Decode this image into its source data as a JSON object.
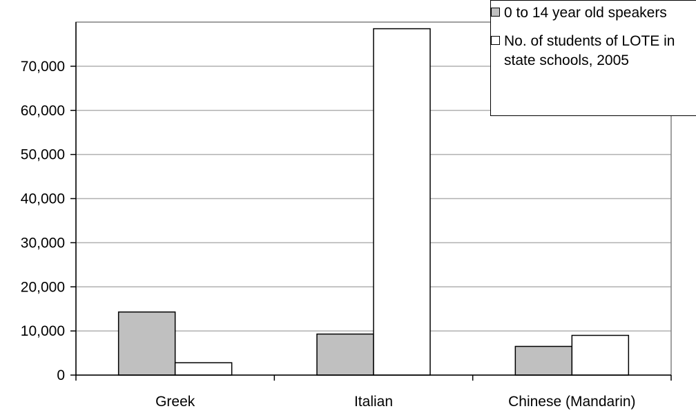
{
  "chart_data": {
    "type": "bar",
    "categories": [
      "Greek",
      "Italian",
      "Chinese (Mandarin)"
    ],
    "series": [
      {
        "name": "0 to 14 year old speakers",
        "color": "#c0c0c0",
        "values": [
          14300,
          9300,
          6500
        ]
      },
      {
        "name": "No. of students of LOTE in state schools, 2005",
        "color": "#ffffff",
        "values": [
          2800,
          78500,
          9000
        ]
      }
    ],
    "y_ticks": [
      "0",
      "10,000",
      "20,000",
      "30,000",
      "40,000",
      "50,000",
      "60,000",
      "70,000"
    ],
    "y_tick_values": [
      0,
      10000,
      20000,
      30000,
      40000,
      50000,
      60000,
      70000
    ],
    "ylim": [
      0,
      80000
    ],
    "grid": true,
    "legend_position": "top-right"
  }
}
